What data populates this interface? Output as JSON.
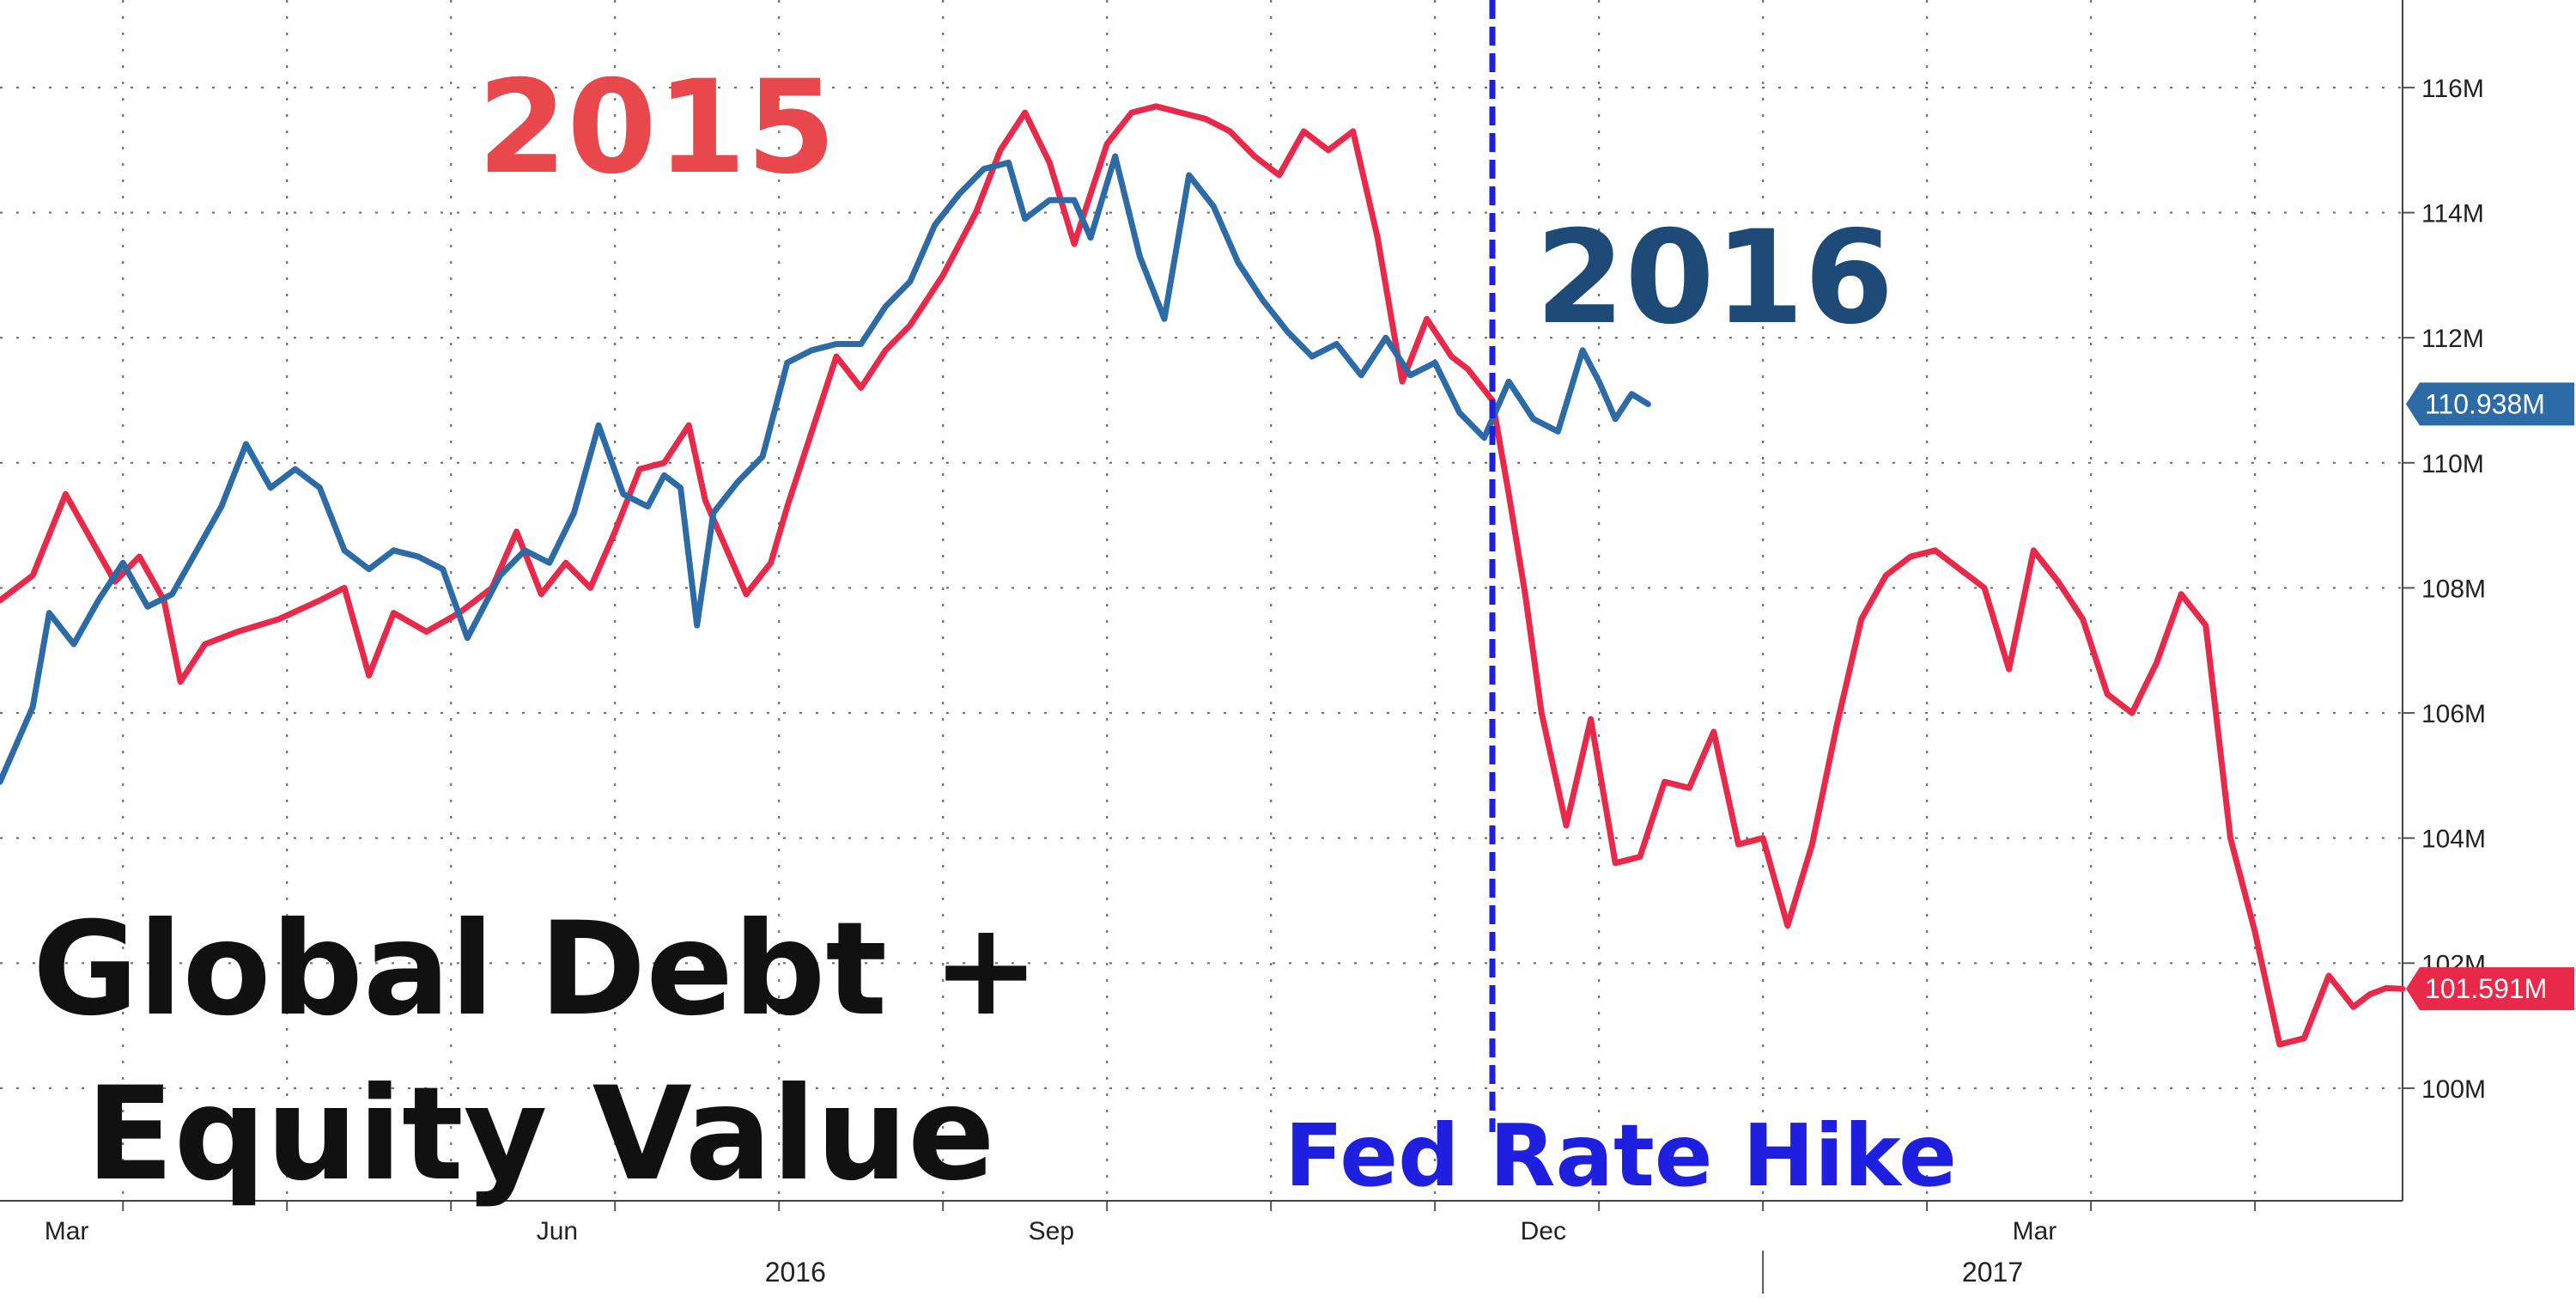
{
  "chart_data": {
    "type": "line",
    "title": "Global Debt + Equity Value",
    "annotations": {
      "label_2015": "2015",
      "label_2016": "2016",
      "fed_event": "Fed Rate Hike",
      "title_line1": "Global Debt +",
      "title_line2": "Equity Value"
    },
    "x_axis": {
      "month_labels": [
        "Mar",
        "Jun",
        "Sep",
        "Dec",
        "Mar"
      ],
      "month_positions": [
        -1,
        2,
        5,
        8,
        11
      ],
      "year_labels": [
        "2016",
        "2017"
      ],
      "year_positions": [
        3.6,
        10.9
      ],
      "tick_positions": [
        -0.5,
        0.5,
        1.5,
        2.5,
        3.5,
        4.5,
        5.5,
        6.5,
        7.5,
        8.5,
        9.5,
        10.5,
        11.5,
        12.5
      ],
      "divider_position": 9.5,
      "xlim": [
        -1.25,
        13.4
      ]
    },
    "y_axis": {
      "ticks": [
        100,
        102,
        104,
        106,
        108,
        110,
        112,
        114,
        116
      ],
      "tick_labels": [
        "100M",
        "102M",
        "104M",
        "106M",
        "108M",
        "110M",
        "112M",
        "114M",
        "116M"
      ],
      "ylim": [
        98.2,
        117.4
      ],
      "units": "M"
    },
    "event_x": 7.85,
    "colors": {
      "red_series": "#e8294a",
      "blue_series": "#2c6ba6",
      "event_line": "#1f1fe0",
      "label_2015": "#e8484b",
      "label_2016": "#1e4a78",
      "title": "#111111"
    },
    "series": [
      {
        "color": "#e8294a",
        "last_value_label": "101.591M",
        "last_value": 101.59,
        "points": [
          [
            -1.25,
            107.8
          ],
          [
            -1.05,
            108.2
          ],
          [
            -0.85,
            109.5
          ],
          [
            -0.7,
            108.8
          ],
          [
            -0.55,
            108.1
          ],
          [
            -0.4,
            108.5
          ],
          [
            -0.25,
            107.8
          ],
          [
            -0.15,
            106.5
          ],
          [
            0.0,
            107.1
          ],
          [
            0.2,
            107.3
          ],
          [
            0.45,
            107.5
          ],
          [
            0.7,
            107.8
          ],
          [
            0.85,
            108.0
          ],
          [
            1.0,
            106.6
          ],
          [
            1.15,
            107.6
          ],
          [
            1.35,
            107.3
          ],
          [
            1.55,
            107.6
          ],
          [
            1.75,
            108.0
          ],
          [
            1.9,
            108.9
          ],
          [
            2.05,
            107.9
          ],
          [
            2.2,
            108.4
          ],
          [
            2.35,
            108.0
          ],
          [
            2.5,
            108.9
          ],
          [
            2.65,
            109.9
          ],
          [
            2.8,
            110.0
          ],
          [
            2.95,
            110.6
          ],
          [
            3.05,
            109.4
          ],
          [
            3.2,
            108.5
          ],
          [
            3.3,
            107.9
          ],
          [
            3.45,
            108.4
          ],
          [
            3.55,
            109.3
          ],
          [
            3.7,
            110.5
          ],
          [
            3.85,
            111.7
          ],
          [
            4.0,
            111.2
          ],
          [
            4.15,
            111.8
          ],
          [
            4.3,
            112.2
          ],
          [
            4.5,
            113.0
          ],
          [
            4.7,
            114.0
          ],
          [
            4.85,
            115.0
          ],
          [
            5.0,
            115.6
          ],
          [
            5.15,
            114.8
          ],
          [
            5.3,
            113.5
          ],
          [
            5.5,
            115.1
          ],
          [
            5.65,
            115.6
          ],
          [
            5.8,
            115.7
          ],
          [
            5.95,
            115.6
          ],
          [
            6.1,
            115.5
          ],
          [
            6.25,
            115.3
          ],
          [
            6.4,
            114.9
          ],
          [
            6.55,
            114.6
          ],
          [
            6.7,
            115.3
          ],
          [
            6.85,
            115.0
          ],
          [
            7.0,
            115.3
          ],
          [
            7.15,
            113.6
          ],
          [
            7.3,
            111.3
          ],
          [
            7.45,
            112.3
          ],
          [
            7.6,
            111.7
          ],
          [
            7.7,
            111.5
          ],
          [
            7.85,
            111.0
          ],
          [
            7.95,
            109.5
          ],
          [
            8.05,
            107.9
          ],
          [
            8.15,
            106.0
          ],
          [
            8.3,
            104.2
          ],
          [
            8.45,
            105.9
          ],
          [
            8.6,
            103.6
          ],
          [
            8.75,
            103.7
          ],
          [
            8.9,
            104.9
          ],
          [
            9.05,
            104.8
          ],
          [
            9.2,
            105.7
          ],
          [
            9.35,
            103.9
          ],
          [
            9.5,
            104.0
          ],
          [
            9.65,
            102.6
          ],
          [
            9.8,
            103.9
          ],
          [
            9.95,
            105.8
          ],
          [
            10.1,
            107.5
          ],
          [
            10.25,
            108.2
          ],
          [
            10.4,
            108.5
          ],
          [
            10.55,
            108.6
          ],
          [
            10.7,
            108.3
          ],
          [
            10.85,
            108.0
          ],
          [
            11.0,
            106.7
          ],
          [
            11.15,
            108.6
          ],
          [
            11.3,
            108.1
          ],
          [
            11.45,
            107.5
          ],
          [
            11.6,
            106.3
          ],
          [
            11.75,
            106.0
          ],
          [
            11.9,
            106.8
          ],
          [
            12.05,
            107.9
          ],
          [
            12.2,
            107.4
          ],
          [
            12.35,
            104.0
          ],
          [
            12.5,
            102.5
          ],
          [
            12.65,
            100.7
          ],
          [
            12.8,
            100.8
          ],
          [
            12.95,
            101.8
          ],
          [
            13.1,
            101.3
          ],
          [
            13.2,
            101.5
          ],
          [
            13.3,
            101.6
          ],
          [
            13.4,
            101.59
          ]
        ]
      },
      {
        "color": "#2c6ba6",
        "last_value_label": "110.938M",
        "last_value": 110.94,
        "points": [
          [
            -1.25,
            104.9
          ],
          [
            -1.15,
            105.5
          ],
          [
            -1.05,
            106.1
          ],
          [
            -0.95,
            107.6
          ],
          [
            -0.8,
            107.1
          ],
          [
            -0.65,
            107.8
          ],
          [
            -0.5,
            108.4
          ],
          [
            -0.35,
            107.7
          ],
          [
            -0.2,
            107.9
          ],
          [
            -0.05,
            108.6
          ],
          [
            0.1,
            109.3
          ],
          [
            0.25,
            110.3
          ],
          [
            0.4,
            109.6
          ],
          [
            0.55,
            109.9
          ],
          [
            0.7,
            109.6
          ],
          [
            0.85,
            108.6
          ],
          [
            1.0,
            108.3
          ],
          [
            1.15,
            108.6
          ],
          [
            1.3,
            108.5
          ],
          [
            1.45,
            108.3
          ],
          [
            1.6,
            107.2
          ],
          [
            1.8,
            108.2
          ],
          [
            1.95,
            108.6
          ],
          [
            2.1,
            108.4
          ],
          [
            2.25,
            109.2
          ],
          [
            2.4,
            110.6
          ],
          [
            2.55,
            109.5
          ],
          [
            2.7,
            109.3
          ],
          [
            2.8,
            109.8
          ],
          [
            2.9,
            109.6
          ],
          [
            3.0,
            107.4
          ],
          [
            3.1,
            109.2
          ],
          [
            3.25,
            109.7
          ],
          [
            3.4,
            110.1
          ],
          [
            3.55,
            111.6
          ],
          [
            3.7,
            111.8
          ],
          [
            3.85,
            111.9
          ],
          [
            4.0,
            111.9
          ],
          [
            4.15,
            112.5
          ],
          [
            4.3,
            112.9
          ],
          [
            4.45,
            113.8
          ],
          [
            4.6,
            114.3
          ],
          [
            4.75,
            114.7
          ],
          [
            4.9,
            114.8
          ],
          [
            5.0,
            113.9
          ],
          [
            5.15,
            114.2
          ],
          [
            5.3,
            114.2
          ],
          [
            5.4,
            113.6
          ],
          [
            5.55,
            114.9
          ],
          [
            5.7,
            113.3
          ],
          [
            5.85,
            112.3
          ],
          [
            6.0,
            114.6
          ],
          [
            6.15,
            114.1
          ],
          [
            6.3,
            113.2
          ],
          [
            6.45,
            112.6
          ],
          [
            6.6,
            112.1
          ],
          [
            6.75,
            111.7
          ],
          [
            6.9,
            111.9
          ],
          [
            7.05,
            111.4
          ],
          [
            7.2,
            112.0
          ],
          [
            7.35,
            111.4
          ],
          [
            7.5,
            111.6
          ],
          [
            7.65,
            110.8
          ],
          [
            7.8,
            110.4
          ],
          [
            7.95,
            111.3
          ],
          [
            8.1,
            110.7
          ],
          [
            8.25,
            110.5
          ],
          [
            8.4,
            111.8
          ],
          [
            8.5,
            111.3
          ],
          [
            8.6,
            110.7
          ],
          [
            8.7,
            111.1
          ],
          [
            8.8,
            110.938
          ]
        ]
      }
    ]
  }
}
